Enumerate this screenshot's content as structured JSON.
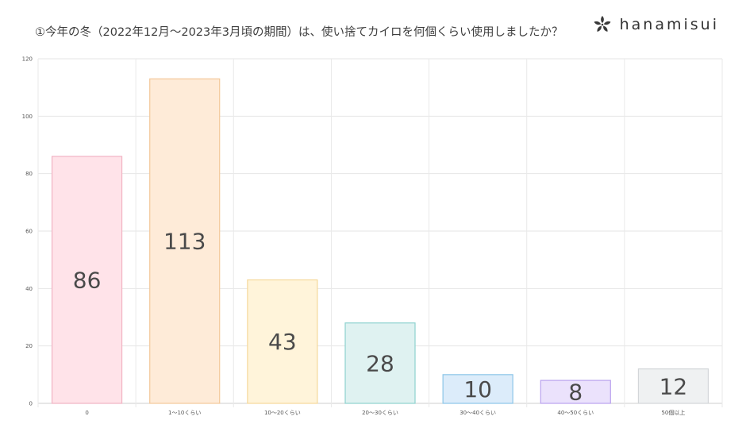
{
  "header": {
    "title": "①今年の冬（2022年12月〜2023年3月頃の期間）は、使い捨てカイロを何個くらい使用しましたか？"
  },
  "brand": {
    "name": "hanamisui",
    "icon": "flower-logo-icon"
  },
  "chart_data": {
    "type": "bar",
    "categories": [
      "0",
      "1〜10くらい",
      "10〜20くらい",
      "20〜30くらい",
      "30〜40くらい",
      "40〜50くらい",
      "50個以上"
    ],
    "values": [
      86,
      113,
      43,
      28,
      10,
      8,
      12
    ],
    "data_labels": [
      "86",
      "113",
      "43",
      "28",
      "10",
      "8",
      "12"
    ],
    "ylim": [
      0,
      120
    ],
    "yticks": [
      "0",
      "20",
      "40",
      "60",
      "80",
      "100",
      "120"
    ],
    "grid": true,
    "legend": "none",
    "colors": {
      "fill": [
        "#ffe3e9",
        "#feebd8",
        "#fff4da",
        "#dff2f1",
        "#dcecfa",
        "#ebe2fc",
        "#eff1f2"
      ],
      "stroke": [
        "#f1b3c3",
        "#f3c89a",
        "#f6d89a",
        "#8ed1cf",
        "#8cc6e8",
        "#b9a2ee",
        "#d3d6d9"
      ]
    }
  }
}
